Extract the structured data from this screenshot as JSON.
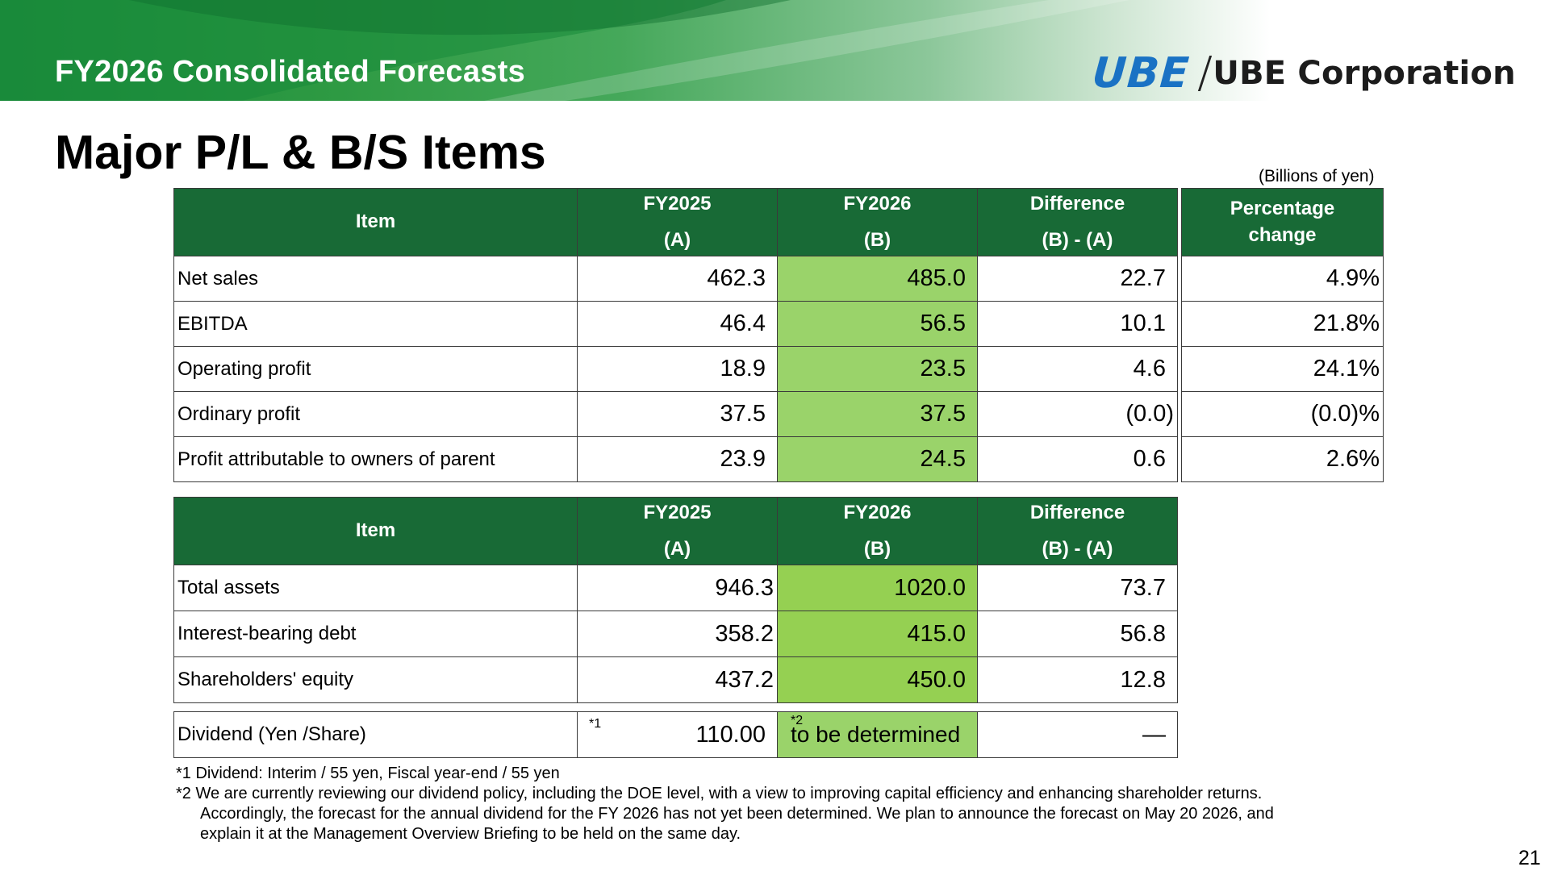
{
  "header": {
    "banner_title": "FY2026 Consolidated Forecasts",
    "logo_mark": "UBE",
    "logo_text": "UBE Corporation",
    "brand_blue": "#1a72c4",
    "brand_green": "#186a36"
  },
  "page_title": "Major P/L & B/S Items",
  "units": "(Billions of yen)",
  "pl_table": {
    "headers": {
      "item": "Item",
      "fy2025_l1": "FY2025",
      "fy2025_l2": "(A)",
      "fy2026_l1": "FY2026",
      "fy2026_l2": "(B)",
      "diff_l1": "Difference",
      "diff_l2": "(B) - (A)",
      "pct_l1": "Percentage",
      "pct_l2": "change"
    },
    "rows": [
      {
        "item": "Net sales",
        "fy2025": "462.3",
        "fy2026": "485.0",
        "diff": "22.7",
        "pct": "4.9%"
      },
      {
        "item": "EBITDA",
        "fy2025": "46.4",
        "fy2026": "56.5",
        "diff": "10.1",
        "pct": "21.8%"
      },
      {
        "item": "Operating profit",
        "fy2025": "18.9",
        "fy2026": "23.5",
        "diff": "4.6",
        "pct": "24.1%"
      },
      {
        "item": "Ordinary profit",
        "fy2025": "37.5",
        "fy2026": "37.5",
        "diff": "(0.0)",
        "pct": "(0.0)%"
      },
      {
        "item": "Profit attributable to owners of parent",
        "fy2025": "23.9",
        "fy2026": "24.5",
        "diff": "0.6",
        "pct": "2.6%"
      }
    ]
  },
  "bs_table": {
    "headers": {
      "item": "Item",
      "fy2025_l1": "FY2025",
      "fy2025_l2": "(A)",
      "fy2026_l1": "FY2026",
      "fy2026_l2": "(B)",
      "diff_l1": "Difference",
      "diff_l2": "(B) - (A)"
    },
    "rows": [
      {
        "item": "Total assets",
        "fy2025": "946.3",
        "fy2026": "1020.0",
        "diff": "73.7"
      },
      {
        "item": "Interest-bearing debt",
        "fy2025": "358.2",
        "fy2026": "415.0",
        "diff": "56.8"
      },
      {
        "item": "Shareholders' equity",
        "fy2025": "437.2",
        "fy2026": "450.0",
        "diff": "12.8"
      }
    ]
  },
  "dividend": {
    "item": "Dividend (Yen /Share)",
    "fy2025_mark": "*1",
    "fy2025": "110.00",
    "fy2026_mark": "*2",
    "fy2026": "to be determined",
    "diff": "—"
  },
  "notes": {
    "n1": "*1 Dividend: Interim / 55 yen, Fiscal year-end / 55 yen",
    "n2a": "*2 We are currently reviewing our dividend policy, including the DOE level, with a view to improving capital efficiency and enhancing shareholder returns.",
    "n2b": "Accordingly, the forecast for the annual dividend for the FY 2026 has not yet been determined. We plan to announce the forecast on May 20 2026, and",
    "n2c": "explain it at the Management Overview Briefing to be held on the same day."
  },
  "page_number": "21"
}
